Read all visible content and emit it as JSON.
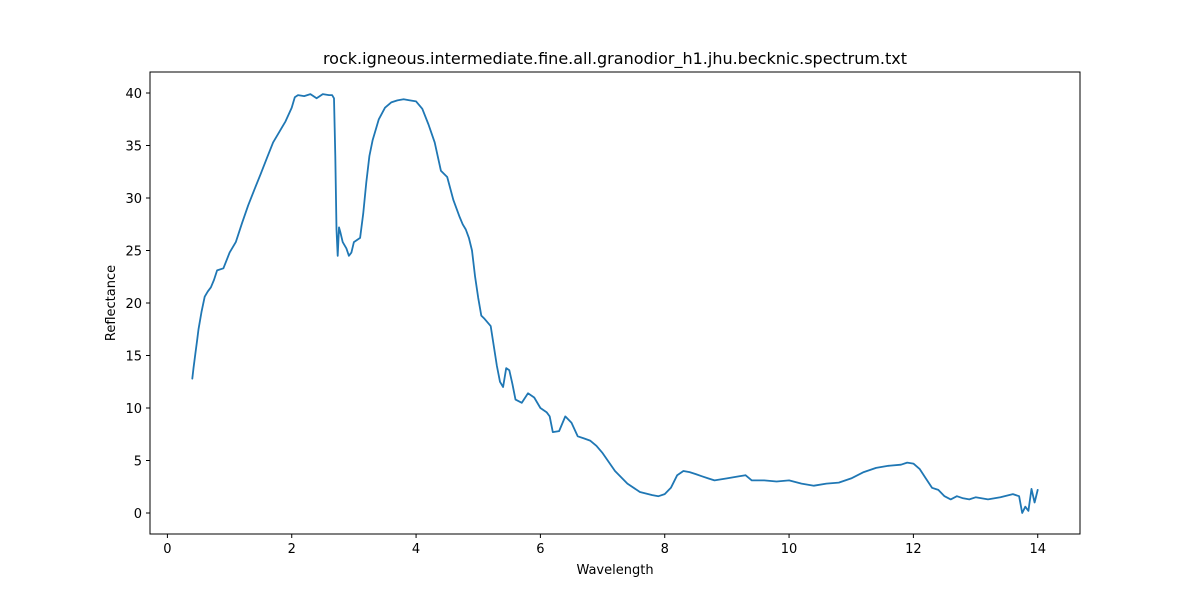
{
  "chart_data": {
    "type": "line",
    "title": "rock.igneous.intermediate.fine.all.granodior_h1.jhu.becknic.spectrum.txt",
    "xlabel": "Wavelength",
    "ylabel": "Reflectance",
    "xlim": [
      -0.28,
      14.68
    ],
    "ylim": [
      -2.0,
      42.0
    ],
    "xticks": [
      0,
      2,
      4,
      6,
      8,
      10,
      12,
      14
    ],
    "yticks": [
      0,
      5,
      10,
      15,
      20,
      25,
      30,
      35,
      40
    ],
    "grid": false,
    "legend": "none",
    "line_color": "#1f77b4",
    "series": [
      {
        "x": [
          0.4,
          0.42,
          0.45,
          0.48,
          0.5,
          0.55,
          0.6,
          0.65,
          0.7,
          0.75,
          0.8,
          0.9,
          1.0,
          1.1,
          1.2,
          1.3,
          1.4,
          1.5,
          1.6,
          1.7,
          1.8,
          1.9,
          2.0,
          2.05,
          2.1,
          2.2,
          2.3,
          2.4,
          2.5,
          2.6,
          2.65,
          2.68,
          2.7,
          2.72,
          2.74,
          2.76,
          2.78,
          2.82,
          2.88,
          2.92,
          2.96,
          3.0,
          3.05,
          3.1,
          3.15,
          3.2,
          3.25,
          3.3,
          3.4,
          3.5,
          3.6,
          3.7,
          3.8,
          3.9,
          4.0,
          4.1,
          4.2,
          4.3,
          4.4,
          4.5,
          4.6,
          4.7,
          4.75,
          4.8,
          4.85,
          4.9,
          4.95,
          5.0,
          5.05,
          5.1,
          5.2,
          5.3,
          5.35,
          5.4,
          5.45,
          5.5,
          5.55,
          5.6,
          5.7,
          5.8,
          5.9,
          6.0,
          6.1,
          6.15,
          6.2,
          6.3,
          6.4,
          6.5,
          6.6,
          6.7,
          6.8,
          6.9,
          7.0,
          7.2,
          7.4,
          7.6,
          7.8,
          7.9,
          8.0,
          8.1,
          8.2,
          8.3,
          8.4,
          8.5,
          8.6,
          8.7,
          8.8,
          9.0,
          9.2,
          9.3,
          9.4,
          9.6,
          9.8,
          10.0,
          10.2,
          10.4,
          10.6,
          10.8,
          11.0,
          11.2,
          11.4,
          11.6,
          11.8,
          11.9,
          12.0,
          12.1,
          12.2,
          12.3,
          12.4,
          12.5,
          12.6,
          12.7,
          12.8,
          12.9,
          13.0,
          13.2,
          13.4,
          13.6,
          13.7,
          13.75,
          13.8,
          13.85,
          13.9,
          13.95,
          14.0
        ],
        "values": [
          12.8,
          13.8,
          15.2,
          16.5,
          17.5,
          19.2,
          20.6,
          21.1,
          21.5,
          22.2,
          23.1,
          23.3,
          24.8,
          25.8,
          27.6,
          29.3,
          30.8,
          32.3,
          33.8,
          35.3,
          36.3,
          37.3,
          38.6,
          39.6,
          39.8,
          39.7,
          39.9,
          39.5,
          39.9,
          39.8,
          39.8,
          39.5,
          34.0,
          27.0,
          24.5,
          27.2,
          26.8,
          25.8,
          25.2,
          24.5,
          24.8,
          25.8,
          26.0,
          26.2,
          28.5,
          31.5,
          34.0,
          35.5,
          37.5,
          38.6,
          39.1,
          39.3,
          39.4,
          39.3,
          39.2,
          38.5,
          37.0,
          35.3,
          32.6,
          32.0,
          29.8,
          28.2,
          27.5,
          27.0,
          26.2,
          25.0,
          22.5,
          20.5,
          18.8,
          18.5,
          17.8,
          14.0,
          12.5,
          12.0,
          13.8,
          13.6,
          12.3,
          10.8,
          10.5,
          11.4,
          11.0,
          10.0,
          9.6,
          9.2,
          7.7,
          7.8,
          9.2,
          8.6,
          7.3,
          7.1,
          6.9,
          6.4,
          5.7,
          4.0,
          2.8,
          2.0,
          1.7,
          1.6,
          1.8,
          2.4,
          3.6,
          4.0,
          3.9,
          3.7,
          3.5,
          3.3,
          3.1,
          3.3,
          3.5,
          3.6,
          3.1,
          3.1,
          3.0,
          3.1,
          2.8,
          2.6,
          2.8,
          2.9,
          3.3,
          3.9,
          4.3,
          4.5,
          4.6,
          4.8,
          4.7,
          4.2,
          3.3,
          2.4,
          2.2,
          1.6,
          1.3,
          1.6,
          1.4,
          1.3,
          1.5,
          1.3,
          1.5,
          1.8,
          1.6,
          0.0,
          0.6,
          0.2,
          2.3,
          1.0,
          2.2
        ]
      }
    ]
  }
}
